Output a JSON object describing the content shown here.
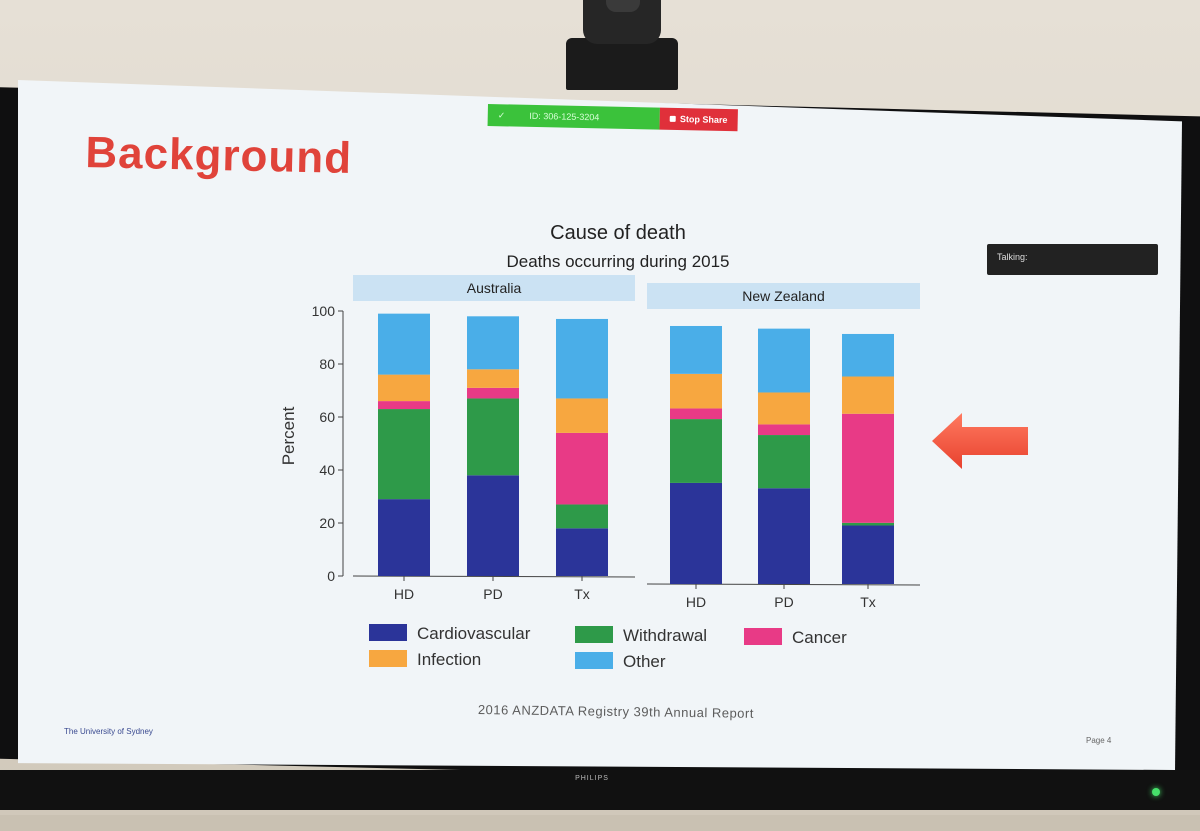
{
  "slide": {
    "heading": "Background",
    "talking_label": "Talking:",
    "source": "2016 ANZDATA Registry 39th Annual Report",
    "institution": "The University of Sydney",
    "page": "Page 4",
    "monitor_brand": "PHILIPS"
  },
  "zoom_bar": {
    "meeting_id": "ID: 306-125-3204",
    "stop_label": "Stop Share",
    "accent_green": "#3bc23b",
    "accent_red": "#e0303a"
  },
  "chart_data": {
    "type": "bar",
    "stacked": true,
    "title": "Cause of death",
    "subtitle": "Deaths occurring during 2015",
    "ylabel": "Percent",
    "ylim": [
      0,
      100
    ],
    "yticks": [
      0,
      20,
      40,
      60,
      80,
      100
    ],
    "grid": false,
    "legend_position": "bottom",
    "panels": [
      {
        "name": "Australia",
        "categories": [
          "HD",
          "PD",
          "Tx"
        ],
        "series": [
          {
            "name": "Cardiovascular",
            "color": "#2b3499",
            "values": [
              29,
              38,
              18
            ]
          },
          {
            "name": "Withdrawal",
            "color": "#2e9a49",
            "values": [
              34,
              29,
              9
            ]
          },
          {
            "name": "Cancer",
            "color": "#e83a86",
            "values": [
              3,
              4,
              27
            ]
          },
          {
            "name": "Infection",
            "color": "#f7a740",
            "values": [
              10,
              7,
              13
            ]
          },
          {
            "name": "Other",
            "color": "#4aaee8",
            "values": [
              23,
              20,
              30
            ]
          }
        ]
      },
      {
        "name": "New Zealand",
        "categories": [
          "HD",
          "PD",
          "Tx"
        ],
        "series": [
          {
            "name": "Cardiovascular",
            "color": "#2b3499",
            "values": [
              38,
              36,
              22
            ]
          },
          {
            "name": "Withdrawal",
            "color": "#2e9a49",
            "values": [
              24,
              20,
              1
            ]
          },
          {
            "name": "Cancer",
            "color": "#e83a86",
            "values": [
              4,
              4,
              41
            ]
          },
          {
            "name": "Infection",
            "color": "#f7a740",
            "values": [
              13,
              12,
              14
            ]
          },
          {
            "name": "Other",
            "color": "#4aaee8",
            "values": [
              18,
              24,
              16
            ]
          }
        ]
      }
    ],
    "legend": [
      "Cardiovascular",
      "Withdrawal",
      "Cancer",
      "Infection",
      "Other"
    ]
  }
}
